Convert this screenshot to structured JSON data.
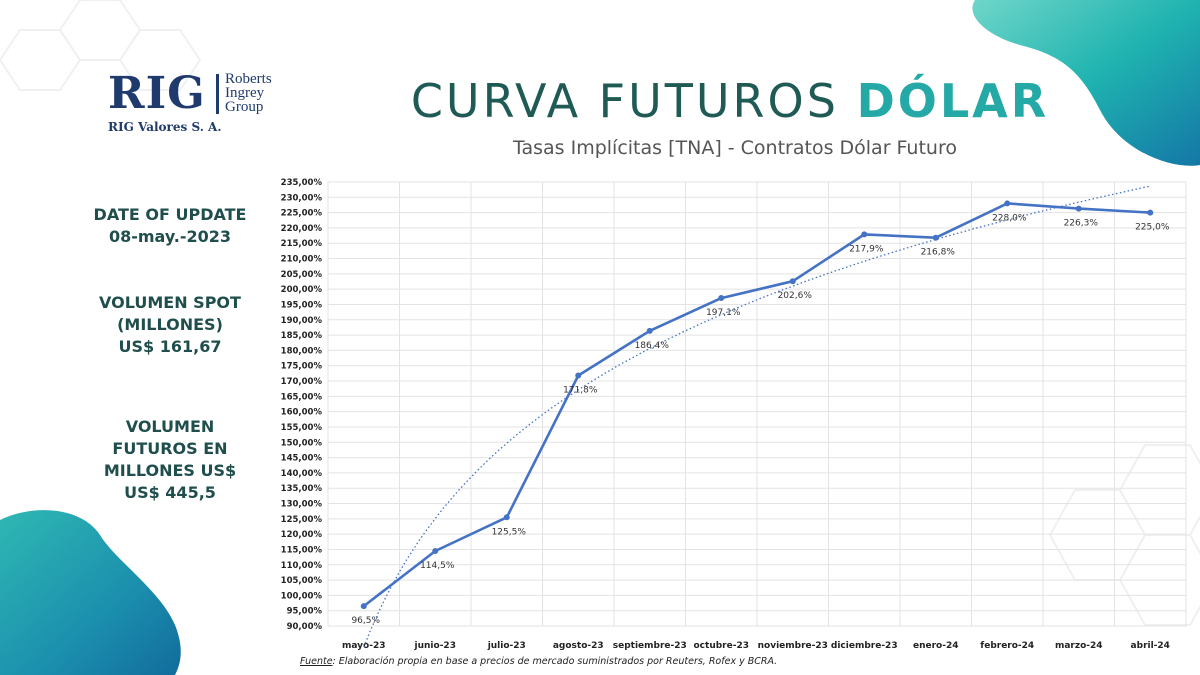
{
  "logo": {
    "mark": "RIG",
    "name_lines": [
      "Roberts",
      "Ingrey",
      "Group"
    ],
    "subtitle": "RIG Valores S. A."
  },
  "header": {
    "title_main": "CURVA FUTUROS",
    "title_accent": "DÓLAR",
    "subtitle": "Tasas Implícitas [TNA] - Contratos Dólar Futuro"
  },
  "info": {
    "update_label": "DATE OF UPDATE",
    "update_date": "08-may.-2023",
    "spot_label_1": "VOLUMEN SPOT",
    "spot_label_2": "(MILLONES)",
    "spot_value": "US$ 161,67",
    "futures_label_1": "VOLUMEN",
    "futures_label_2": "FUTUROS EN",
    "futures_label_3": "MILLONES US$",
    "futures_value": "US$ 445,5"
  },
  "footnote": {
    "source_label": "Fuente",
    "text": ": Elaboración propia en base a precios de mercado suministrados por Reuters, Rofex y BCRA."
  },
  "colors": {
    "series_line": "#4472c4",
    "trend_line": "#4472c4",
    "title_dark": "#1f5a55",
    "title_accent": "#24a9a6",
    "logo_navy": "#1f3b6d",
    "teal_corner": "#1fa8a8"
  },
  "chart_data": {
    "type": "line",
    "categories": [
      "mayo-23",
      "junio-23",
      "julio-23",
      "agosto-23",
      "septiembre-23",
      "octubre-23",
      "noviembre-23",
      "diciembre-23",
      "enero-24",
      "febrero-24",
      "marzo-24",
      "abril-24"
    ],
    "values": [
      96.5,
      114.5,
      125.5,
      171.8,
      186.4,
      197.1,
      202.6,
      217.9,
      216.8,
      228.0,
      226.3,
      225.0
    ],
    "data_labels": [
      "96,5%",
      "114,5%",
      "125,5%",
      "171,8%",
      "186,4%",
      "197,1%",
      "202,6%",
      "217,9%",
      "216,8%",
      "228,0%",
      "226,3%",
      "225,0%"
    ],
    "ylim": [
      90,
      235
    ],
    "y_step": 5,
    "y_tick_labels": [
      "90,00%",
      "95,00%",
      "100,00%",
      "105,00%",
      "110,00%",
      "115,00%",
      "120,00%",
      "125,00%",
      "130,00%",
      "135,00%",
      "140,00%",
      "145,00%",
      "150,00%",
      "155,00%",
      "160,00%",
      "165,00%",
      "170,00%",
      "175,00%",
      "180,00%",
      "185,00%",
      "190,00%",
      "195,00%",
      "200,00%",
      "205,00%",
      "210,00%",
      "215,00%",
      "220,00%",
      "225,00%",
      "230,00%",
      "235,00%"
    ],
    "trendline": "logarithmic",
    "grid": true,
    "legend": "none"
  }
}
